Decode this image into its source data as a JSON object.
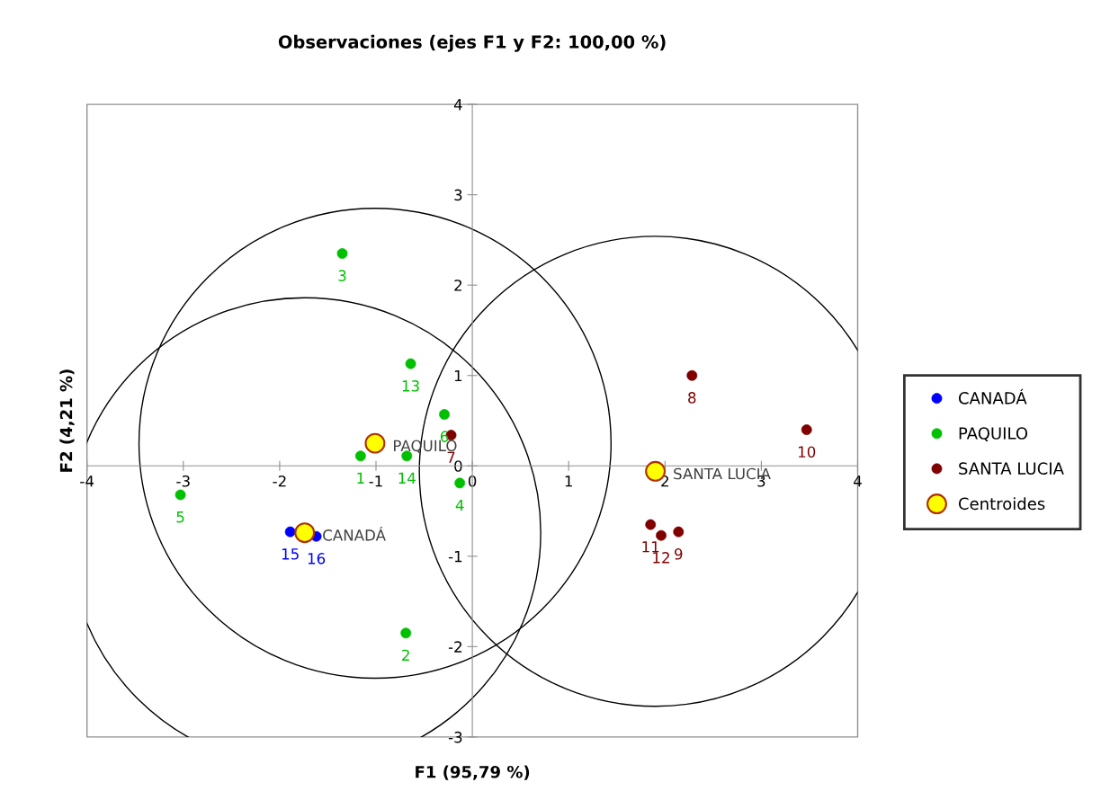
{
  "chart_data": {
    "type": "scatter",
    "title": "Observaciones (ejes F1 y F2: 100,00 %)",
    "xlabel": "F1 (95,79 %)",
    "ylabel": "F2 (4,21 %)",
    "xlim": [
      -4,
      4
    ],
    "ylim": [
      -3,
      4
    ],
    "xticks": [
      -4,
      -3,
      -2,
      -1,
      0,
      1,
      2,
      3,
      4
    ],
    "yticks": [
      -3,
      -2,
      -1,
      0,
      1,
      2,
      3,
      4
    ],
    "grid": false,
    "legend": "right",
    "marker": "circle",
    "series": [
      {
        "name": "CANADÁ",
        "color": "#0000ff",
        "x": [
          -1.89,
          -1.62
        ],
        "values": [
          -0.73,
          -0.78
        ]
      },
      {
        "name": "PAQUILO",
        "color": "#00c000",
        "x": [
          -1.16,
          -0.69,
          -1.35,
          -0.13,
          -3.03,
          -0.29,
          -0.64,
          -0.68
        ],
        "values": [
          0.11,
          -1.85,
          2.35,
          -0.19,
          -0.32,
          0.57,
          1.13,
          0.11
        ]
      },
      {
        "name": "SANTA LUCIA",
        "color": "#800000",
        "x": [
          -0.22,
          2.28,
          2.14,
          3.47,
          1.85,
          1.96
        ],
        "values": [
          0.34,
          1.0,
          -0.73,
          0.4,
          -0.65,
          -0.77
        ]
      },
      {
        "name": "Centroides",
        "color": "#ffff00",
        "x": [
          -1.74,
          -1.01,
          1.9
        ],
        "values": [
          -0.74,
          0.25,
          -0.06
        ]
      }
    ],
    "annotations": [
      {
        "text": "15",
        "x": -1.89,
        "y": -0.73
      },
      {
        "text": "16",
        "x": -1.62,
        "y": -0.78
      },
      {
        "text": "1",
        "x": -1.16,
        "y": 0.11
      },
      {
        "text": "2",
        "x": -0.69,
        "y": -1.85
      },
      {
        "text": "3",
        "x": -1.35,
        "y": 2.35
      },
      {
        "text": "4",
        "x": -0.13,
        "y": -0.19
      },
      {
        "text": "5",
        "x": -3.03,
        "y": -0.32
      },
      {
        "text": "6",
        "x": -0.29,
        "y": 0.57
      },
      {
        "text": "13",
        "x": -0.64,
        "y": 1.13
      },
      {
        "text": "14",
        "x": -0.68,
        "y": 0.11
      },
      {
        "text": "7",
        "x": -0.22,
        "y": 0.34
      },
      {
        "text": "8",
        "x": 2.28,
        "y": 1.0
      },
      {
        "text": "9",
        "x": 2.14,
        "y": -0.73
      },
      {
        "text": "10",
        "x": 3.47,
        "y": 0.4
      },
      {
        "text": "11",
        "x": 1.85,
        "y": -0.65
      },
      {
        "text": "12",
        "x": 1.96,
        "y": -0.77
      },
      {
        "text": "CANADÁ",
        "x": -1.74,
        "y": -0.74
      },
      {
        "text": "PAQUILO",
        "x": -1.01,
        "y": 0.25
      },
      {
        "text": "SANTA LUCIA",
        "x": 1.9,
        "y": -0.06
      }
    ]
  }
}
